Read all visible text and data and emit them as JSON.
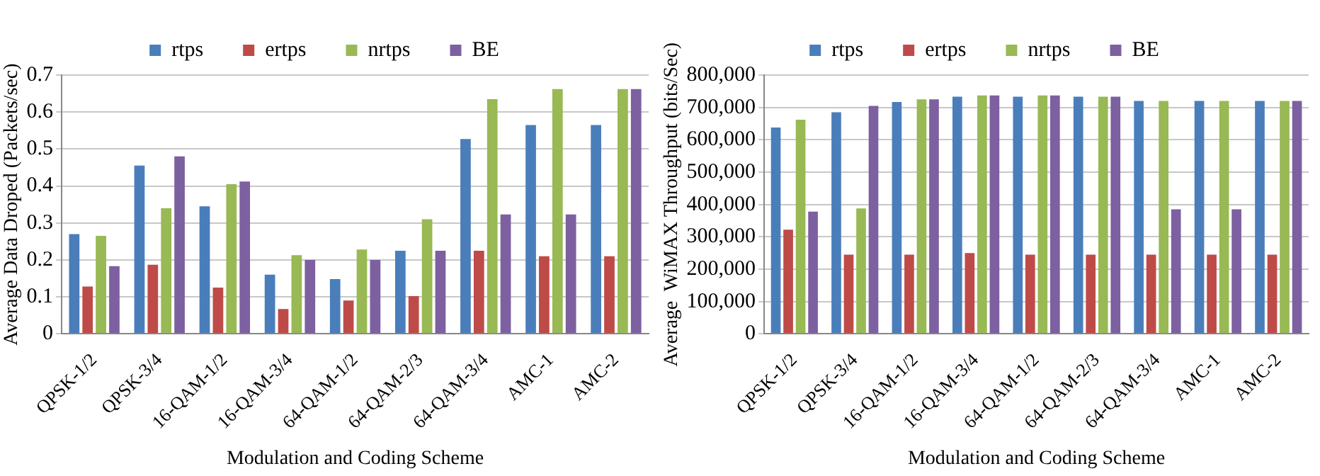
{
  "chart_data": [
    {
      "type": "bar",
      "xlabel": "Modulation and Coding Scheme",
      "ylabel": "Average Data Droped (Packets/sec)",
      "categories": [
        "QPSK-1/2",
        "QPSK-3/4",
        "16-QAM-1/2",
        "16-QAM-3/4",
        "64-QAM-1/2",
        "64-QAM-2/3",
        "64-QAM-3/4",
        "AMC-1",
        "AMC-2"
      ],
      "series": [
        {
          "name": "rtps",
          "color": "#4a7ebb",
          "values": [
            0.27,
            0.455,
            0.345,
            0.16,
            0.148,
            0.225,
            0.527,
            0.565,
            0.565
          ]
        },
        {
          "name": "ertps",
          "color": "#be4b48",
          "values": [
            0.128,
            0.187,
            0.125,
            0.067,
            0.09,
            0.102,
            0.225,
            0.21,
            0.21
          ]
        },
        {
          "name": "nrtps",
          "color": "#98b954",
          "values": [
            0.265,
            0.34,
            0.405,
            0.213,
            0.228,
            0.31,
            0.635,
            0.662,
            0.662
          ]
        },
        {
          "name": "BE",
          "color": "#7d60a0",
          "values": [
            0.183,
            0.48,
            0.412,
            0.2,
            0.2,
            0.225,
            0.323,
            0.323,
            0.662
          ]
        }
      ],
      "ylim": [
        0,
        0.7
      ],
      "yticks": [
        0,
        0.1,
        0.2,
        0.3,
        0.4,
        0.5,
        0.6,
        0.7
      ],
      "grid": "y",
      "legend": "top"
    },
    {
      "type": "bar",
      "xlabel": "Modulation and Coding Scheme",
      "ylabel": "Average  WiMAX Throughput (bits/Sec)",
      "categories": [
        "QPSK-1/2",
        "QPSK-3/4",
        "16-QAM-1/2",
        "16-QAM-3/4",
        "64-QAM-1/2",
        "64-QAM-2/3",
        "64-QAM-3/4",
        "AMC-1",
        "AMC-2"
      ],
      "series": [
        {
          "name": "rtps",
          "color": "#4a7ebb",
          "values": [
            638000,
            685000,
            717000,
            733000,
            733000,
            733000,
            720000,
            720000,
            720000
          ]
        },
        {
          "name": "ertps",
          "color": "#be4b48",
          "values": [
            322000,
            245000,
            245000,
            250000,
            245000,
            245000,
            245000,
            245000,
            245000
          ]
        },
        {
          "name": "nrtps",
          "color": "#98b954",
          "values": [
            662000,
            388000,
            725000,
            737000,
            737000,
            733000,
            720000,
            720000,
            720000
          ]
        },
        {
          "name": "BE",
          "color": "#7d60a0",
          "values": [
            378000,
            705000,
            725000,
            737000,
            737000,
            733000,
            385000,
            385000,
            720000
          ]
        }
      ],
      "ylim": [
        0,
        800000
      ],
      "yticks": [
        0,
        {
          "value": 100000,
          "label": "100,000"
        },
        {
          "value": 200000,
          "label": "200,000"
        },
        {
          "value": 300000,
          "label": "300,000"
        },
        {
          "value": 400000,
          "label": "400,000"
        },
        {
          "value": 500000,
          "label": "500,000"
        },
        {
          "value": 600000,
          "label": "600,000"
        },
        {
          "value": 700000,
          "label": "700,000"
        },
        {
          "value": 800000,
          "label": "800,000"
        }
      ],
      "grid": "y",
      "legend": "top"
    }
  ]
}
